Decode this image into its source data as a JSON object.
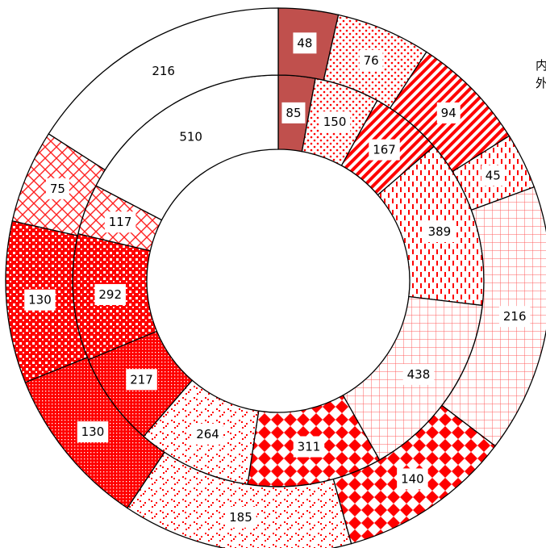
{
  "chart_data": {
    "type": "donut",
    "title": "",
    "series": [
      {
        "name": "内",
        "values": [
          85,
          150,
          167,
          389,
          438,
          311,
          264,
          217,
          292,
          117,
          510
        ]
      },
      {
        "name": "外",
        "values": [
          48,
          76,
          94,
          45,
          216,
          140,
          185,
          130,
          130,
          75,
          216
        ]
      }
    ],
    "slice_styles": [
      "solid-dark-red",
      "dots",
      "diagonal-stripes",
      "dashes",
      "grid",
      "diamonds",
      "scatter-dots",
      "dense-dots",
      "checker",
      "crosshatch",
      "white"
    ],
    "legend_position": "right (cropped)"
  },
  "legend": {
    "inner_label": "内",
    "outer_label": "外"
  },
  "colors": {
    "accent": "#ff0000",
    "dark": "#c0504d",
    "stroke": "#000000",
    "background": "#ffffff"
  }
}
